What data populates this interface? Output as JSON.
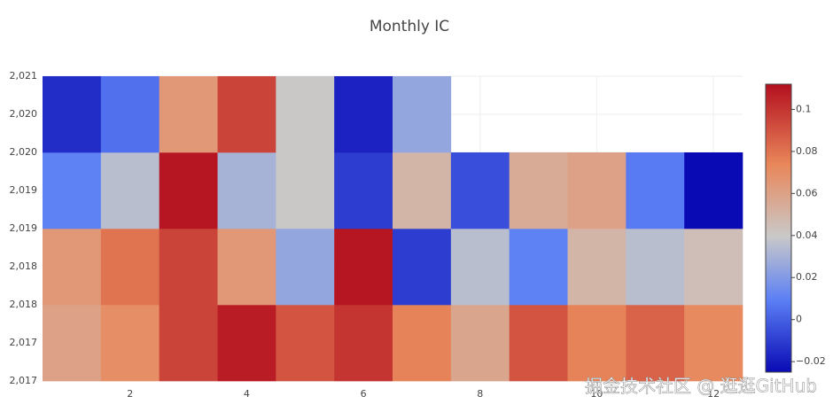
{
  "chart_data": {
    "type": "heatmap",
    "title": "Monthly IC",
    "x": [
      1,
      2,
      3,
      4,
      5,
      6,
      7,
      8,
      9,
      10,
      11,
      12
    ],
    "y": [
      2017,
      2018,
      2019,
      2020
    ],
    "z": [
      [
        0.06,
        0.07,
        0.095,
        0.108,
        0.09,
        0.1,
        0.075,
        0.058,
        0.09,
        0.075,
        0.085,
        0.072
      ],
      [
        0.065,
        0.08,
        0.095,
        0.065,
        0.025,
        0.11,
        -0.01,
        0.035,
        0.01,
        0.05,
        0.035,
        0.045
      ],
      [
        0.01,
        0.035,
        0.11,
        0.03,
        0.04,
        -0.01,
        0.05,
        -0.005,
        0.055,
        0.06,
        0.008,
        -0.025
      ],
      [
        -0.015,
        0.005,
        0.065,
        0.095,
        0.04,
        -0.018,
        0.025,
        null,
        null,
        null,
        null,
        null
      ]
    ],
    "xlim": [
      0.5,
      12.5
    ],
    "xticks": [
      2,
      4,
      6,
      8,
      10,
      12
    ],
    "ylim": [
      2016.5,
      2020.5
    ],
    "yticks": [
      {
        "value": 2016.5,
        "label": "2,017"
      },
      {
        "value": 2017,
        "label": "2,017"
      },
      {
        "value": 2017.5,
        "label": "2,018"
      },
      {
        "value": 2018,
        "label": "2,018"
      },
      {
        "value": 2018.5,
        "label": "2,019"
      },
      {
        "value": 2019,
        "label": "2,019"
      },
      {
        "value": 2019.5,
        "label": "2,020"
      },
      {
        "value": 2020,
        "label": "2,020"
      },
      {
        "value": 2020.5,
        "label": "2,021"
      }
    ],
    "zlim": [
      -0.025,
      0.112
    ],
    "colorbar_ticks": [
      {
        "value": -0.02,
        "label": "−0.02"
      },
      0,
      0.02,
      0.04,
      0.06,
      0.08,
      0.1
    ],
    "colorscale": [
      [
        0,
        "#0a0ab4"
      ],
      [
        0.25,
        "#5b7ff5"
      ],
      [
        0.47,
        "#c9c9c9"
      ],
      [
        0.72,
        "#e9875a"
      ],
      [
        1,
        "#b30f1f"
      ]
    ],
    "grid": true,
    "watermark": "掘金技术社区 @ 逛逛GitHub"
  }
}
